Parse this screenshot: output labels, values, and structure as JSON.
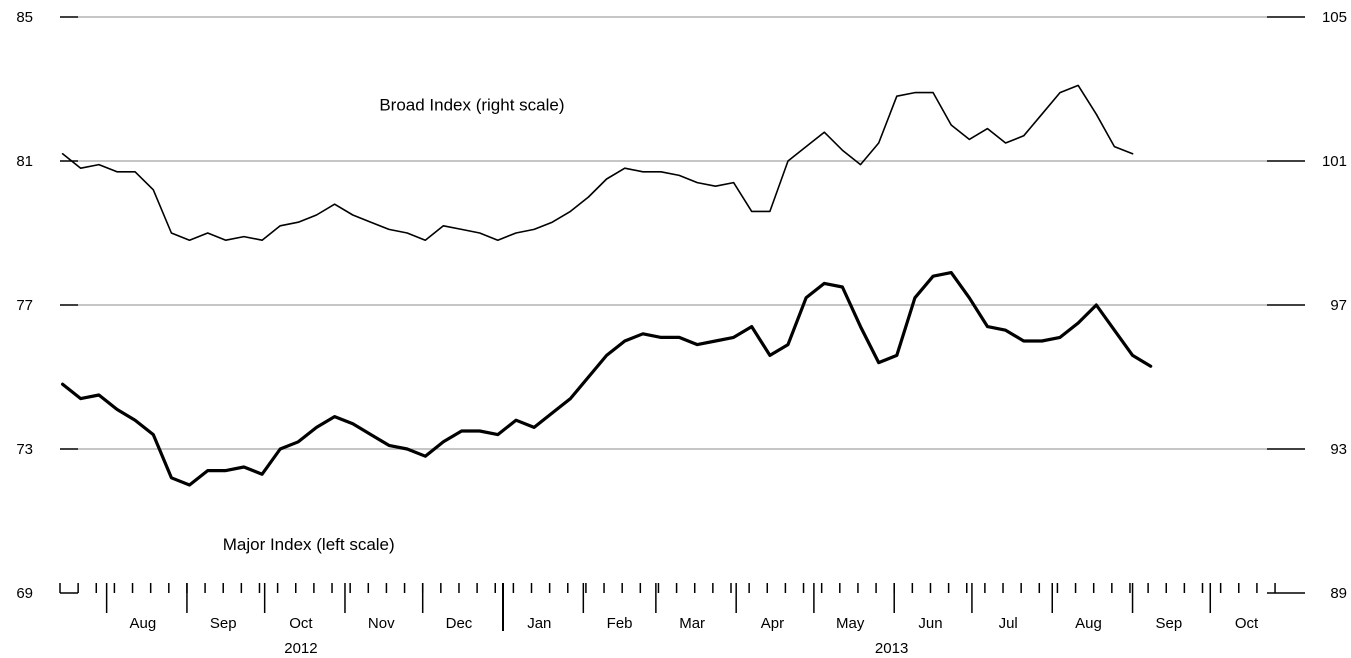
{
  "chart_data": {
    "type": "line",
    "title": "",
    "grid": true,
    "y_left": {
      "range": [
        69,
        85
      ],
      "ticks": [
        "69",
        "73",
        "77",
        "81",
        "85"
      ]
    },
    "y_right": {
      "range": [
        89,
        105
      ],
      "ticks": [
        "89",
        "93",
        "97",
        "101",
        "105"
      ]
    },
    "x_axis": {
      "start": "2012-07-14",
      "end": "2013-10-31",
      "month_labels": [
        {
          "label": "Aug",
          "date": "2012-08-15"
        },
        {
          "label": "Sep",
          "date": "2012-09-15"
        },
        {
          "label": "Oct",
          "date": "2012-10-15"
        },
        {
          "label": "Nov",
          "date": "2012-11-15"
        },
        {
          "label": "Dec",
          "date": "2012-12-15"
        },
        {
          "label": "Jan",
          "date": "2013-01-15"
        },
        {
          "label": "Feb",
          "date": "2013-02-15"
        },
        {
          "label": "Mar",
          "date": "2013-03-15"
        },
        {
          "label": "Apr",
          "date": "2013-04-15"
        },
        {
          "label": "May",
          "date": "2013-05-15"
        },
        {
          "label": "Jun",
          "date": "2013-06-15"
        },
        {
          "label": "Jul",
          "date": "2013-07-15"
        },
        {
          "label": "Aug",
          "date": "2013-08-15"
        },
        {
          "label": "Sep",
          "date": "2013-09-15"
        },
        {
          "label": "Oct",
          "date": "2013-10-15"
        }
      ],
      "year_labels": [
        {
          "label": "2012",
          "date": "2012-10-15"
        },
        {
          "label": "2013",
          "date": "2013-05-31"
        }
      ]
    },
    "annotations": [
      {
        "text": "Broad Index (right scale)",
        "x": "2012-12-20",
        "y": 102.4
      },
      {
        "text": "Major Index (left scale)",
        "x": "2012-10-18",
        "y": 70.2
      }
    ],
    "series": [
      {
        "axis": "left",
        "style": "thick",
        "points": [
          [
            "2012-07-15",
            74.8
          ],
          [
            "2012-07-22",
            74.4
          ],
          [
            "2012-07-29",
            74.5
          ],
          [
            "2012-08-05",
            74.1
          ],
          [
            "2012-08-12",
            73.8
          ],
          [
            "2012-08-19",
            73.4
          ],
          [
            "2012-08-26",
            72.2
          ],
          [
            "2012-09-02",
            72.0
          ],
          [
            "2012-09-09",
            72.4
          ],
          [
            "2012-09-16",
            72.4
          ],
          [
            "2012-09-23",
            72.5
          ],
          [
            "2012-09-30",
            72.3
          ],
          [
            "2012-10-07",
            73.0
          ],
          [
            "2012-10-14",
            73.2
          ],
          [
            "2012-10-21",
            73.6
          ],
          [
            "2012-10-28",
            73.9
          ],
          [
            "2012-11-04",
            73.7
          ],
          [
            "2012-11-11",
            73.4
          ],
          [
            "2012-11-18",
            73.1
          ],
          [
            "2012-11-25",
            73.0
          ],
          [
            "2012-12-02",
            72.8
          ],
          [
            "2012-12-09",
            73.2
          ],
          [
            "2012-12-16",
            73.5
          ],
          [
            "2012-12-23",
            73.5
          ],
          [
            "2012-12-30",
            73.4
          ],
          [
            "2013-01-06",
            73.8
          ],
          [
            "2013-01-13",
            73.6
          ],
          [
            "2013-01-20",
            74.0
          ],
          [
            "2013-01-27",
            74.4
          ],
          [
            "2013-02-03",
            75.0
          ],
          [
            "2013-02-10",
            75.6
          ],
          [
            "2013-02-17",
            76.0
          ],
          [
            "2013-02-24",
            76.2
          ],
          [
            "2013-03-03",
            76.1
          ],
          [
            "2013-03-10",
            76.1
          ],
          [
            "2013-03-17",
            75.9
          ],
          [
            "2013-03-24",
            76.0
          ],
          [
            "2013-03-31",
            76.1
          ],
          [
            "2013-04-07",
            76.4
          ],
          [
            "2013-04-14",
            75.6
          ],
          [
            "2013-04-21",
            75.9
          ],
          [
            "2013-04-28",
            77.2
          ],
          [
            "2013-05-05",
            77.6
          ],
          [
            "2013-05-12",
            77.5
          ],
          [
            "2013-05-19",
            76.4
          ],
          [
            "2013-05-26",
            75.4
          ],
          [
            "2013-06-02",
            75.6
          ],
          [
            "2013-06-09",
            77.2
          ],
          [
            "2013-06-16",
            77.8
          ],
          [
            "2013-06-23",
            77.9
          ],
          [
            "2013-06-30",
            77.2
          ],
          [
            "2013-07-07",
            76.4
          ],
          [
            "2013-07-14",
            76.3
          ],
          [
            "2013-07-21",
            76.0
          ],
          [
            "2013-07-28",
            76.0
          ],
          [
            "2013-08-04",
            76.1
          ],
          [
            "2013-08-11",
            76.5
          ],
          [
            "2013-08-18",
            77.0
          ],
          [
            "2013-08-25",
            76.3
          ],
          [
            "2013-09-01",
            75.6
          ],
          [
            "2013-09-08",
            75.3
          ]
        ]
      },
      {
        "axis": "right",
        "style": "thin",
        "points": [
          [
            "2012-07-15",
            101.2
          ],
          [
            "2012-07-22",
            100.8
          ],
          [
            "2012-07-29",
            100.9
          ],
          [
            "2012-08-05",
            100.7
          ],
          [
            "2012-08-12",
            100.7
          ],
          [
            "2012-08-19",
            100.2
          ],
          [
            "2012-08-26",
            99.0
          ],
          [
            "2012-09-02",
            98.8
          ],
          [
            "2012-09-09",
            99.0
          ],
          [
            "2012-09-16",
            98.8
          ],
          [
            "2012-09-23",
            98.9
          ],
          [
            "2012-09-30",
            98.8
          ],
          [
            "2012-10-07",
            99.2
          ],
          [
            "2012-10-14",
            99.3
          ],
          [
            "2012-10-21",
            99.5
          ],
          [
            "2012-10-28",
            99.8
          ],
          [
            "2012-11-04",
            99.5
          ],
          [
            "2012-11-11",
            99.3
          ],
          [
            "2012-11-18",
            99.1
          ],
          [
            "2012-11-25",
            99.0
          ],
          [
            "2012-12-02",
            98.8
          ],
          [
            "2012-12-09",
            99.2
          ],
          [
            "2012-12-16",
            99.1
          ],
          [
            "2012-12-23",
            99.0
          ],
          [
            "2012-12-30",
            98.8
          ],
          [
            "2013-01-06",
            99.0
          ],
          [
            "2013-01-13",
            99.1
          ],
          [
            "2013-01-20",
            99.3
          ],
          [
            "2013-01-27",
            99.6
          ],
          [
            "2013-02-03",
            100.0
          ],
          [
            "2013-02-10",
            100.5
          ],
          [
            "2013-02-17",
            100.8
          ],
          [
            "2013-02-24",
            100.7
          ],
          [
            "2013-03-03",
            100.7
          ],
          [
            "2013-03-10",
            100.6
          ],
          [
            "2013-03-17",
            100.4
          ],
          [
            "2013-03-24",
            100.3
          ],
          [
            "2013-03-31",
            100.4
          ],
          [
            "2013-04-07",
            99.6
          ],
          [
            "2013-04-14",
            99.6
          ],
          [
            "2013-04-21",
            101.0
          ],
          [
            "2013-04-28",
            101.4
          ],
          [
            "2013-05-05",
            101.8
          ],
          [
            "2013-05-12",
            101.3
          ],
          [
            "2013-05-19",
            100.9
          ],
          [
            "2013-05-26",
            101.5
          ],
          [
            "2013-06-02",
            102.8
          ],
          [
            "2013-06-09",
            102.9
          ],
          [
            "2013-06-16",
            102.9
          ],
          [
            "2013-06-23",
            102.0
          ],
          [
            "2013-06-30",
            101.6
          ],
          [
            "2013-07-07",
            101.9
          ],
          [
            "2013-07-14",
            101.5
          ],
          [
            "2013-07-21",
            101.7
          ],
          [
            "2013-07-28",
            102.3
          ],
          [
            "2013-08-04",
            102.9
          ],
          [
            "2013-08-11",
            103.1
          ],
          [
            "2013-08-18",
            102.3
          ],
          [
            "2013-08-25",
            101.4
          ],
          [
            "2013-09-01",
            101.2
          ]
        ]
      }
    ]
  }
}
